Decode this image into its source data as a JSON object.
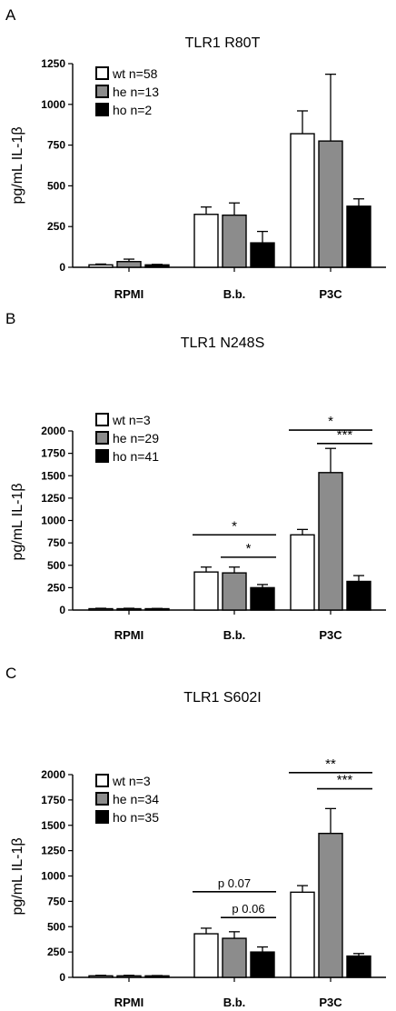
{
  "chart_data": [
    {
      "type": "bar",
      "panel_label": "A",
      "title": "TLR1 R80T",
      "ylabel": "pg/mL IL-1β",
      "ylim": [
        0,
        1250
      ],
      "yticks": [
        "0",
        "250",
        "500",
        "750",
        "1000",
        "1250"
      ],
      "categories": [
        "RPMI",
        "B.b.",
        "P3C"
      ],
      "legend_position": "top-left",
      "series": [
        {
          "name": "wt n=58",
          "color": "#ffffff",
          "values": [
            15,
            325,
            820
          ],
          "errors": [
            5,
            45,
            140
          ]
        },
        {
          "name": "he n=13",
          "color": "#8c8c8c",
          "values": [
            35,
            320,
            775
          ],
          "errors": [
            15,
            75,
            410
          ]
        },
        {
          "name": "ho n=2",
          "color": "#000000",
          "values": [
            15,
            150,
            375
          ],
          "errors": [
            3,
            70,
            45
          ]
        }
      ],
      "annotations": []
    },
    {
      "type": "bar",
      "panel_label": "B",
      "title": "TLR1 N248S",
      "ylabel": "pg/mL IL-1β",
      "ylim": [
        0,
        2000
      ],
      "yticks": [
        "0",
        "250",
        "500",
        "750",
        "1000",
        "1250",
        "1500",
        "1750",
        "2000"
      ],
      "categories": [
        "RPMI",
        "B.b.",
        "P3C"
      ],
      "legend_position": "top-left",
      "series": [
        {
          "name": "wt n=3",
          "color": "#ffffff",
          "values": [
            15,
            425,
            840
          ],
          "errors": [
            5,
            55,
            60
          ]
        },
        {
          "name": "he n=29",
          "color": "#8c8c8c",
          "values": [
            15,
            415,
            1535
          ],
          "errors": [
            5,
            65,
            270
          ]
        },
        {
          "name": "ho n=41",
          "color": "#000000",
          "values": [
            15,
            250,
            320
          ],
          "errors": [
            3,
            35,
            65
          ]
        }
      ],
      "annotations": [
        {
          "label": "*",
          "category": 1,
          "from_series": 0,
          "to_series": 2,
          "y": 840
        },
        {
          "label": "*",
          "category": 1,
          "from_series": 1,
          "to_series": 2,
          "y": 590
        },
        {
          "label": "*",
          "category": 2,
          "from_series": 0,
          "to_series": 2,
          "y": 2010
        },
        {
          "label": "***",
          "category": 2,
          "from_series": 1,
          "to_series": 2,
          "y": 1860
        }
      ]
    },
    {
      "type": "bar",
      "panel_label": "C",
      "title": "TLR1 S602I",
      "ylabel": "pg/mL IL-1β",
      "ylim": [
        0,
        2000
      ],
      "yticks": [
        "0",
        "250",
        "500",
        "750",
        "1000",
        "1250",
        "1500",
        "1750",
        "2000"
      ],
      "categories": [
        "RPMI",
        "B.b.",
        "P3C"
      ],
      "legend_position": "top-left",
      "series": [
        {
          "name": "wt n=3",
          "color": "#ffffff",
          "values": [
            15,
            430,
            840
          ],
          "errors": [
            5,
            55,
            65
          ]
        },
        {
          "name": "he n=34",
          "color": "#8c8c8c",
          "values": [
            15,
            385,
            1420
          ],
          "errors": [
            5,
            65,
            245
          ]
        },
        {
          "name": "ho n=35",
          "color": "#000000",
          "values": [
            15,
            250,
            210
          ],
          "errors": [
            3,
            50,
            25
          ]
        }
      ],
      "annotations": [
        {
          "label": "p 0.07",
          "category": 1,
          "from_series": 0,
          "to_series": 2,
          "y": 845
        },
        {
          "label": "p 0.06",
          "category": 1,
          "from_series": 1,
          "to_series": 2,
          "y": 590
        },
        {
          "label": "**",
          "category": 2,
          "from_series": 0,
          "to_series": 2,
          "y": 2020
        },
        {
          "label": "***",
          "category": 2,
          "from_series": 1,
          "to_series": 2,
          "y": 1860
        }
      ]
    }
  ]
}
